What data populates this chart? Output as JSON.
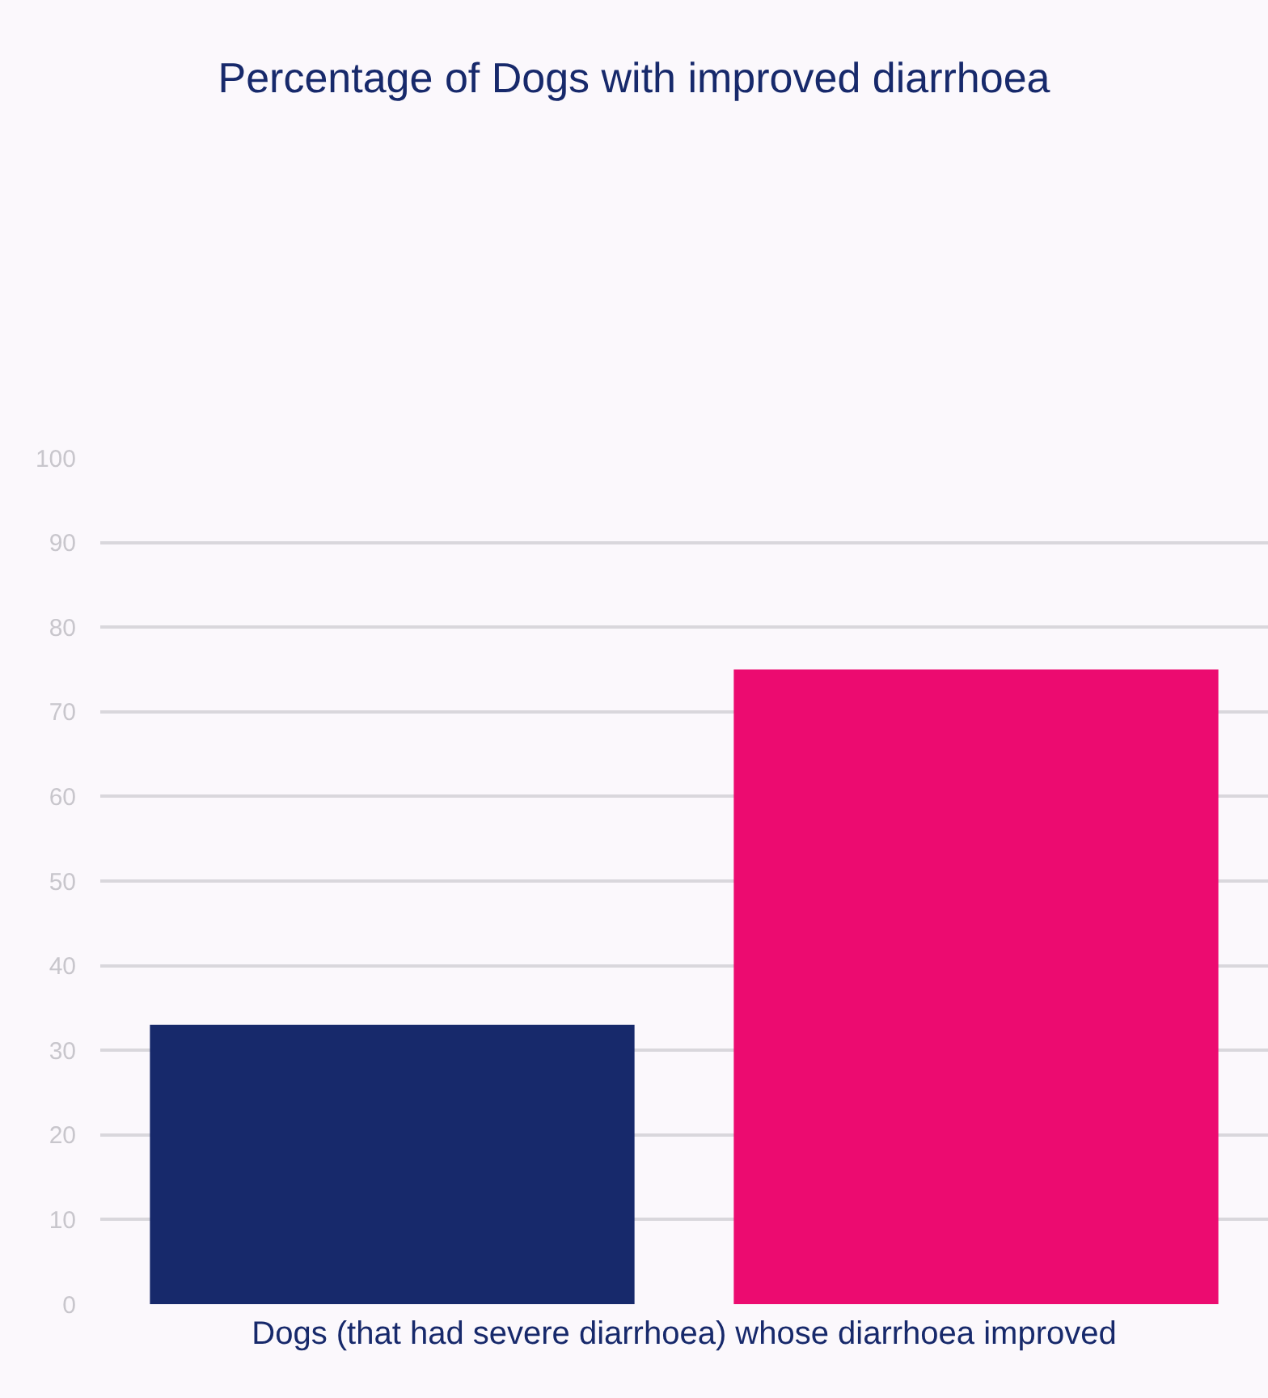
{
  "chart_data": {
    "type": "bar",
    "title": "Percentage of Dogs with improved diarrhoea",
    "xlabel": "Dogs (that had severe diarrhoea) whose diarrhoea improved",
    "categories": [
      null,
      null
    ],
    "values": [
      33,
      75
    ],
    "colors": [
      "#17296b",
      "#ec0b70"
    ],
    "ylim": [
      0,
      100
    ],
    "yticks": [
      0,
      10,
      20,
      30,
      40,
      50,
      60,
      70,
      80,
      90,
      100
    ],
    "grid": "y",
    "legend": false
  }
}
